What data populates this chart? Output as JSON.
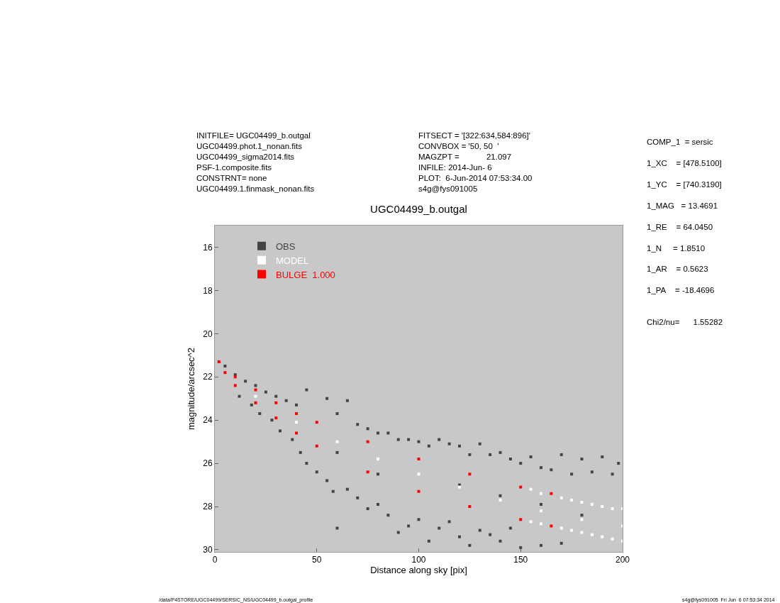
{
  "chart_data": {
    "type": "scatter",
    "title": "UGC04499_b.outgal",
    "xlabel": "Distance along sky [pix]",
    "ylabel": "magnitude/arcsec^2",
    "xlim": [
      0,
      200
    ],
    "xticks": [
      0,
      50,
      100,
      150,
      200
    ],
    "ylim": [
      30.1,
      15
    ],
    "yticks": [
      16,
      18,
      20,
      22,
      24,
      26,
      28,
      30
    ],
    "grid": false,
    "legend": "top left",
    "marker": "square",
    "annotations": [
      "INITFILE= UGC04499_b.outgal\nUGC04499.phot.1_nonan.fits\nUGC04499_sigma2014.fits\nPSF-1.composite.fits\nCONSTRNT= none\nUGC04499.1.finmask_nonan.fits",
      "FITSECT = '[322:634,584:896]'\nCONVBOX = '50, 50  '\nMAGZPT =            21.097\nINFILE: 2014-Jun- 6\nPLOT:  6-Jun-2014 07:53:34.00\ns4g@fys091005",
      "COMP_1  = sersic\n1_XC    = [478.5100]\n1_YC    = [740.3190]\n1_MAG   = 13.4691\n1_RE    = 64.0450\n1_N     = 1.8510\n1_AR    = 0.5623\n1_PA    = -18.4696\n\nChi2/nu=      1.55282",
      "/data/P4STORE/UGC04499/SERSIC_NS/UGC04499_b.outgal_profile",
      "s4g@fys091005  Fri Jun  6 07:53:34 2014"
    ],
    "series": [
      {
        "name": "OBS",
        "color": "#444444",
        "x": [
          5,
          10,
          15,
          20,
          25,
          30,
          35,
          40,
          45,
          55,
          60,
          65,
          70,
          75,
          80,
          85,
          90,
          95,
          100,
          105,
          110,
          115,
          120,
          125,
          130,
          135,
          140,
          145,
          150,
          155,
          160,
          165,
          170,
          175,
          180,
          185,
          190,
          195,
          198,
          12,
          18,
          22,
          28,
          32,
          38,
          42,
          45,
          50,
          55,
          58,
          60,
          65,
          70,
          75,
          80,
          85,
          90,
          95,
          100,
          105,
          110,
          115,
          120,
          125,
          130,
          135,
          140,
          145,
          150,
          160,
          170,
          60,
          80,
          120,
          140,
          160,
          180
        ],
        "values": [
          21.5,
          21.9,
          22.2,
          22.4,
          22.7,
          22.9,
          23.1,
          23.3,
          22.6,
          23.0,
          23.7,
          23.1,
          24.2,
          24.4,
          24.6,
          24.6,
          24.9,
          24.9,
          25.0,
          25.2,
          24.9,
          25.1,
          25.2,
          25.6,
          25.1,
          25.6,
          25.5,
          25.8,
          26.0,
          25.7,
          26.2,
          26.3,
          25.6,
          26.5,
          25.8,
          26.4,
          25.7,
          26.5,
          26.0,
          22.9,
          23.3,
          23.7,
          24.0,
          24.5,
          24.9,
          25.5,
          26.0,
          26.4,
          26.8,
          27.3,
          29.0,
          27.2,
          27.6,
          28.1,
          27.9,
          28.4,
          29.2,
          28.9,
          28.6,
          29.6,
          29.0,
          28.7,
          29.4,
          29.8,
          29.1,
          29.3,
          29.6,
          29.0,
          29.9,
          29.8,
          29.7,
          25.5,
          26.5,
          27.0,
          27.5,
          27.9,
          28.4
        ]
      },
      {
        "name": "MODEL",
        "color": "#ffffff",
        "x": [
          155,
          160,
          170,
          175,
          180,
          185,
          190,
          195,
          200,
          155,
          160,
          170,
          175,
          180,
          185,
          190,
          195,
          200,
          20,
          40,
          60,
          80,
          100,
          120,
          140,
          160,
          180,
          200
        ],
        "values": [
          27.2,
          27.4,
          27.6,
          27.7,
          27.8,
          27.9,
          28.0,
          28.1,
          28.1,
          28.7,
          28.8,
          29.0,
          29.1,
          29.2,
          29.3,
          29.4,
          29.5,
          29.6,
          22.9,
          24.1,
          25.0,
          25.8,
          26.5,
          27.1,
          27.7,
          28.2,
          28.6,
          28.9
        ]
      },
      {
        "name": "BULGE  1.000",
        "color": "#ff0000",
        "x": [
          2,
          10,
          20,
          30,
          40,
          50,
          75,
          100,
          125,
          150,
          165,
          5,
          10,
          20,
          30,
          40,
          50,
          75,
          100,
          125,
          150,
          165
        ],
        "values": [
          21.3,
          22.0,
          22.6,
          23.2,
          23.7,
          24.1,
          25.0,
          25.8,
          26.5,
          27.1,
          27.4,
          21.8,
          22.4,
          23.2,
          23.9,
          24.6,
          25.2,
          26.4,
          27.3,
          28.0,
          28.6,
          28.9
        ]
      }
    ]
  }
}
